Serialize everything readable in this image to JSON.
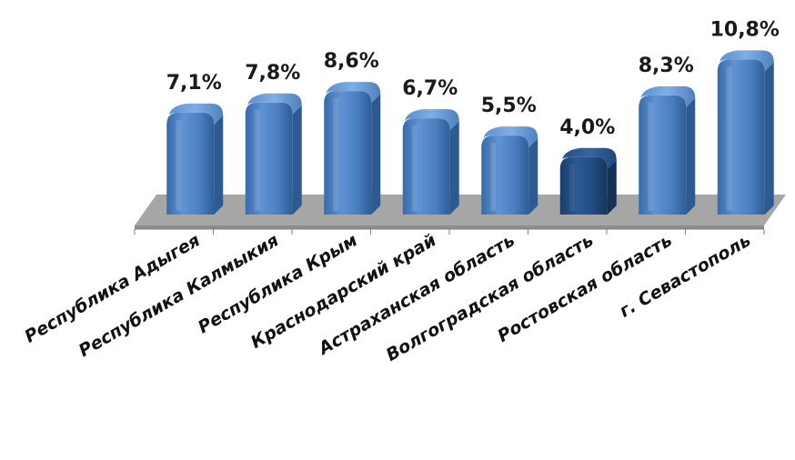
{
  "chart_data": {
    "type": "bar",
    "title": "",
    "xlabel": "",
    "ylabel": "",
    "categories": [
      "Республика Адыгея",
      "Республика Калмыкия",
      "Республика Крым",
      "Краснодарский край",
      "Астраханская область",
      "Волгоградская область",
      "Ростовская область",
      "г. Севастополь"
    ],
    "values": [
      7.1,
      7.8,
      8.6,
      6.7,
      5.5,
      4.0,
      8.3,
      10.8
    ],
    "data_labels": [
      "7,1%",
      "7,8%",
      "8,6%",
      "6,7%",
      "5,5%",
      "4,0%",
      "8,3%",
      "10,8%"
    ],
    "highlight_index": 5,
    "colors": {
      "bar": "#4f81bd",
      "bar_highlight": "#1f497d",
      "floor": "#a6a6a6"
    },
    "grid": false,
    "legend": "none"
  }
}
